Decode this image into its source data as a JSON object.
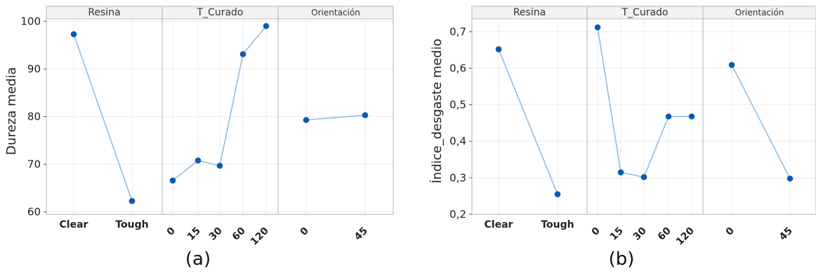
{
  "chart_data": [
    {
      "type": "line",
      "ylabel": "Dureza media",
      "ylim": [
        59.5,
        100.5
      ],
      "yticks": [
        60,
        70,
        80,
        90,
        100
      ],
      "grid": true,
      "label": "(a)",
      "panels": [
        {
          "title": "Resina",
          "categories": [
            "Clear",
            "Tough"
          ],
          "values": [
            97.3,
            62.3
          ]
        },
        {
          "title": "T_Curado",
          "categories": [
            "0",
            "15",
            "30",
            "60",
            "120"
          ],
          "values": [
            66.6,
            70.8,
            69.7,
            93.1,
            99.0
          ]
        },
        {
          "title": "Orientación",
          "categories": [
            "0",
            "45"
          ],
          "values": [
            79.3,
            80.3
          ]
        }
      ]
    },
    {
      "type": "line",
      "ylabel": "Índice_desgaste medio",
      "ylim": [
        0.2,
        0.735
      ],
      "yticks": [
        "0,2",
        "0,3",
        "0,4",
        "0,5",
        "0,6",
        "0,7"
      ],
      "ytick_values": [
        0.2,
        0.3,
        0.4,
        0.5,
        0.6,
        0.7
      ],
      "grid": true,
      "label": "(b)",
      "panels": [
        {
          "title": "Resina",
          "categories": [
            "Clear",
            "Tough"
          ],
          "values": [
            0.652,
            0.255
          ]
        },
        {
          "title": "T_Curado",
          "categories": [
            "0",
            "15",
            "30",
            "60",
            "120"
          ],
          "values": [
            0.712,
            0.315,
            0.302,
            0.468,
            0.468
          ]
        },
        {
          "title": "Orientación",
          "categories": [
            "0",
            "45"
          ],
          "values": [
            0.609,
            0.298
          ]
        }
      ]
    }
  ],
  "style": {
    "line_color": "#8fbde3",
    "marker_color": "#0a5bb1",
    "frame_color": "#bfbfbf",
    "grid_color": "#ececec",
    "strip_color": "#f2f2f2"
  }
}
